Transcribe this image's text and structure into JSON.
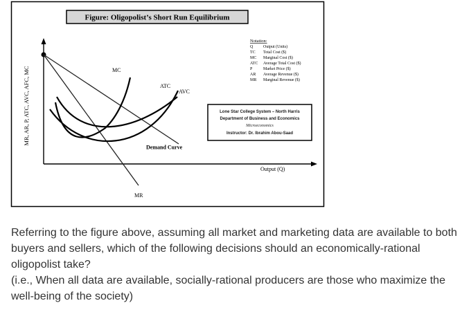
{
  "figure": {
    "title": "Figure: Oligopolist’s Short Run Equilibrium",
    "y_axis_label": "MR, AR, P, ATC, AVC, AFC, MC",
    "x_axis_label": "Output (Q)",
    "curve_labels": {
      "mc": "MC",
      "atc": "ATC",
      "avc": "AVC",
      "demand": "Demand Curve",
      "mr": "MR"
    },
    "notation": {
      "heading": "Notation:",
      "rows": [
        {
          "abbr": "Q",
          "meaning": "Output (Units)"
        },
        {
          "abbr": "TC",
          "meaning": "Total Cost ($)"
        },
        {
          "abbr": "MC",
          "meaning": "Marginal Cost ($)"
        },
        {
          "abbr": "ATC",
          "meaning": "Average Total Cost ($)"
        },
        {
          "abbr": "P",
          "meaning": "Market Price ($)"
        },
        {
          "abbr": "AR",
          "meaning": "Average Revenue ($)"
        },
        {
          "abbr": "MR",
          "meaning": "Marginal Revenue ($)"
        }
      ]
    },
    "credit": {
      "line1": "Lone Star College System – North Harris",
      "line2": "Department of Business and Economics",
      "line3": "Microeconomics",
      "line4": "Instructor: Dr. Ibrahim Abou-Saad"
    }
  },
  "question": {
    "paragraph1": "Referring to the figure above, assuming all market and marketing data are available to both buyers and sellers, which of the following decisions should an economically-rational oligopolist take?",
    "paragraph2": "(i.e., When all data are available, socially-rational producers are those who maximize the well-being of the society)"
  }
}
